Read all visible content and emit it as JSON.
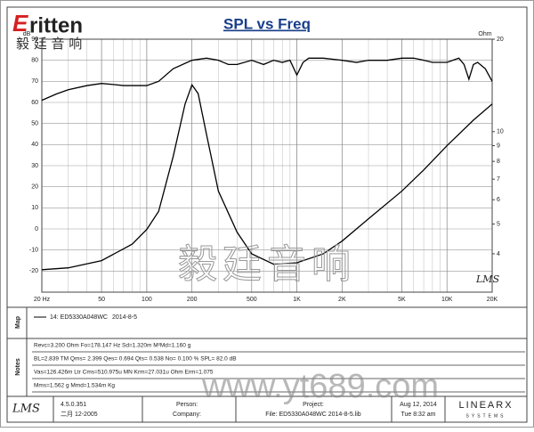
{
  "logo": {
    "mark": "E",
    "text": "ritten",
    "subtitle": "毅 廷 音 响"
  },
  "chart_data": {
    "type": "line",
    "title": "SPL vs Freq",
    "ylabel": "dB",
    "y2label": "Ohm",
    "xlog": true,
    "y2log": true,
    "grid": true,
    "xlim": [
      20,
      20000
    ],
    "xticks": [
      {
        "value": 20,
        "label": "20 Hz"
      },
      50,
      100,
      200,
      500,
      {
        "value": 1000,
        "label": "1K"
      },
      {
        "value": 2000,
        "label": "2K"
      },
      {
        "value": 5000,
        "label": "5K"
      },
      {
        "value": 10000,
        "label": "10K"
      },
      {
        "value": 20000,
        "label": "20K"
      }
    ],
    "ylim": [
      -30,
      90
    ],
    "yticks": [
      -20,
      -10,
      0,
      10,
      20,
      30,
      40,
      50,
      60,
      70,
      80,
      90
    ],
    "y2lim": [
      3,
      20
    ],
    "y2ticks": [
      4,
      5,
      6,
      7,
      8,
      9,
      10,
      20
    ],
    "series": [
      {
        "color": "#000000",
        "axis": "y",
        "x": [
          20,
          25,
          30,
          40,
          50,
          60,
          70,
          80,
          100,
          120,
          150,
          200,
          250,
          300,
          350,
          400,
          500,
          600,
          700,
          800,
          900,
          1000,
          1100,
          1200,
          1500,
          2000,
          2500,
          3000,
          4000,
          5000,
          6000,
          7000,
          8000,
          10000,
          12000,
          13000,
          14000,
          15000,
          16000,
          18000,
          20000
        ],
        "values": [
          61,
          64,
          66,
          68,
          69,
          68.5,
          68,
          68,
          68,
          70,
          76,
          80,
          81,
          80,
          78,
          78,
          80,
          78,
          80,
          79,
          80,
          73,
          79,
          81,
          81,
          80,
          79,
          80,
          80,
          81,
          81,
          80,
          79,
          79,
          81,
          78,
          71,
          78,
          79,
          76,
          70
        ]
      },
      {
        "color": "#000000",
        "axis": "y2",
        "x": [
          20,
          30,
          50,
          80,
          100,
          120,
          150,
          180,
          200,
          220,
          250,
          300,
          400,
          500,
          700,
          1000,
          1500,
          2000,
          3000,
          5000,
          7000,
          10000,
          15000,
          20000
        ],
        "values": [
          3.55,
          3.6,
          3.8,
          4.3,
          4.8,
          5.5,
          8.3,
          12.3,
          14.2,
          13.3,
          9.8,
          6.4,
          4.7,
          4.0,
          3.7,
          3.74,
          4.0,
          4.4,
          5.2,
          6.4,
          7.5,
          9.0,
          10.9,
          12.3
        ]
      }
    ]
  },
  "map": {
    "heading": "Map",
    "entry": "14: ED5330A048WC",
    "date": "2014-8-5"
  },
  "notes": {
    "heading": "Notes",
    "lines": [
      "Revc=3.200 Ohm  Fo=178.147 Hz  Sd=1.320m M²Md=1.160 g",
      "BL=2.839 TM  Qms= 2.399  Qes= 0.694  Qts= 0.538  No= 0.100 %  SPL= 82.0 dB",
      "Vas=126.426m Ltr  Cms=510.975u MN  Krm=27.031u Ohm  Erm=1.075",
      "Mms=1.562 g  Mmd=1.534m Kg"
    ]
  },
  "footer": {
    "app": "LMS",
    "version": "4.5.0.351",
    "build": "二月 12-2005",
    "person": "Person:",
    "company": "Company:",
    "project": "Project:",
    "file": "File: ED5330A048WC   2014-8-5.lib",
    "date": "Aug 12, 2014",
    "time": "Tue  8:32 am",
    "brand": "LINEARX",
    "brand_sub": "SYSTEMS"
  },
  "watermarks": {
    "chinese": "毅廷音响",
    "url": "www.yt689.com",
    "lms": "LMS"
  }
}
